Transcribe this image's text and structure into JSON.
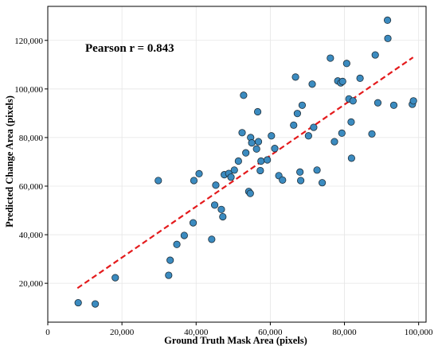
{
  "chart_data": {
    "type": "scatter",
    "title": "",
    "xlabel": "Ground Truth Mask Area (pixels)",
    "ylabel": "Predicted Change Area (pixels)",
    "annotation": "Pearson r = 0.843",
    "xlim": [
      0,
      102000
    ],
    "ylim": [
      4000,
      134000
    ],
    "x_ticks": [
      0,
      20000,
      40000,
      60000,
      80000,
      100000
    ],
    "x_tick_labels": [
      "0",
      "20,000",
      "40,000",
      "60,000",
      "80,000",
      "100,000"
    ],
    "y_ticks": [
      20000,
      40000,
      60000,
      80000,
      100000,
      120000
    ],
    "y_tick_labels": [
      "20,000",
      "40,000",
      "60,000",
      "80,000",
      "100,000",
      "120,000"
    ],
    "grid": true,
    "colors": {
      "points": "#3b8bc0",
      "point_edge": "#1f2f3a",
      "fit_line": "#e41a1c"
    },
    "fit_line": {
      "x": [
        8000,
        98500
      ],
      "y": [
        18000,
        113000
      ]
    },
    "points": [
      [
        8200,
        12000
      ],
      [
        12800,
        11500
      ],
      [
        18200,
        22300
      ],
      [
        29800,
        62300
      ],
      [
        32600,
        23300
      ],
      [
        33000,
        29500
      ],
      [
        34800,
        36000
      ],
      [
        36800,
        39700
      ],
      [
        39200,
        44900
      ],
      [
        39400,
        62300
      ],
      [
        40800,
        65100
      ],
      [
        44200,
        38100
      ],
      [
        45000,
        52200
      ],
      [
        45300,
        60400
      ],
      [
        46800,
        50400
      ],
      [
        47200,
        47400
      ],
      [
        47600,
        64700
      ],
      [
        48800,
        65200
      ],
      [
        49400,
        63700
      ],
      [
        50300,
        66600
      ],
      [
        51400,
        70300
      ],
      [
        52400,
        82000
      ],
      [
        52800,
        97400
      ],
      [
        53400,
        73700
      ],
      [
        54200,
        57800
      ],
      [
        54600,
        57000
      ],
      [
        54700,
        80000
      ],
      [
        55000,
        77800
      ],
      [
        56300,
        75300
      ],
      [
        56600,
        90600
      ],
      [
        56800,
        78300
      ],
      [
        57300,
        66400
      ],
      [
        57500,
        70300
      ],
      [
        59200,
        70800
      ],
      [
        60300,
        80700
      ],
      [
        61200,
        75500
      ],
      [
        62300,
        64300
      ],
      [
        63300,
        62500
      ],
      [
        66300,
        85100
      ],
      [
        66800,
        104900
      ],
      [
        67300,
        89900
      ],
      [
        68000,
        65800
      ],
      [
        68200,
        62300
      ],
      [
        68600,
        93300
      ],
      [
        70300,
        80700
      ],
      [
        71300,
        102000
      ],
      [
        71700,
        84200
      ],
      [
        72600,
        66600
      ],
      [
        74000,
        61400
      ],
      [
        76200,
        112700
      ],
      [
        77300,
        78300
      ],
      [
        78200,
        103300
      ],
      [
        79000,
        102500
      ],
      [
        79300,
        81800
      ],
      [
        79500,
        103100
      ],
      [
        80600,
        110500
      ],
      [
        81200,
        95900
      ],
      [
        81800,
        86400
      ],
      [
        81900,
        71500
      ],
      [
        82300,
        95100
      ],
      [
        84200,
        104400
      ],
      [
        87400,
        81500
      ],
      [
        88300,
        114000
      ],
      [
        89000,
        94300
      ],
      [
        91600,
        128300
      ],
      [
        91700,
        120800
      ],
      [
        93300,
        93300
      ],
      [
        98300,
        93700
      ],
      [
        98600,
        95100
      ]
    ]
  }
}
